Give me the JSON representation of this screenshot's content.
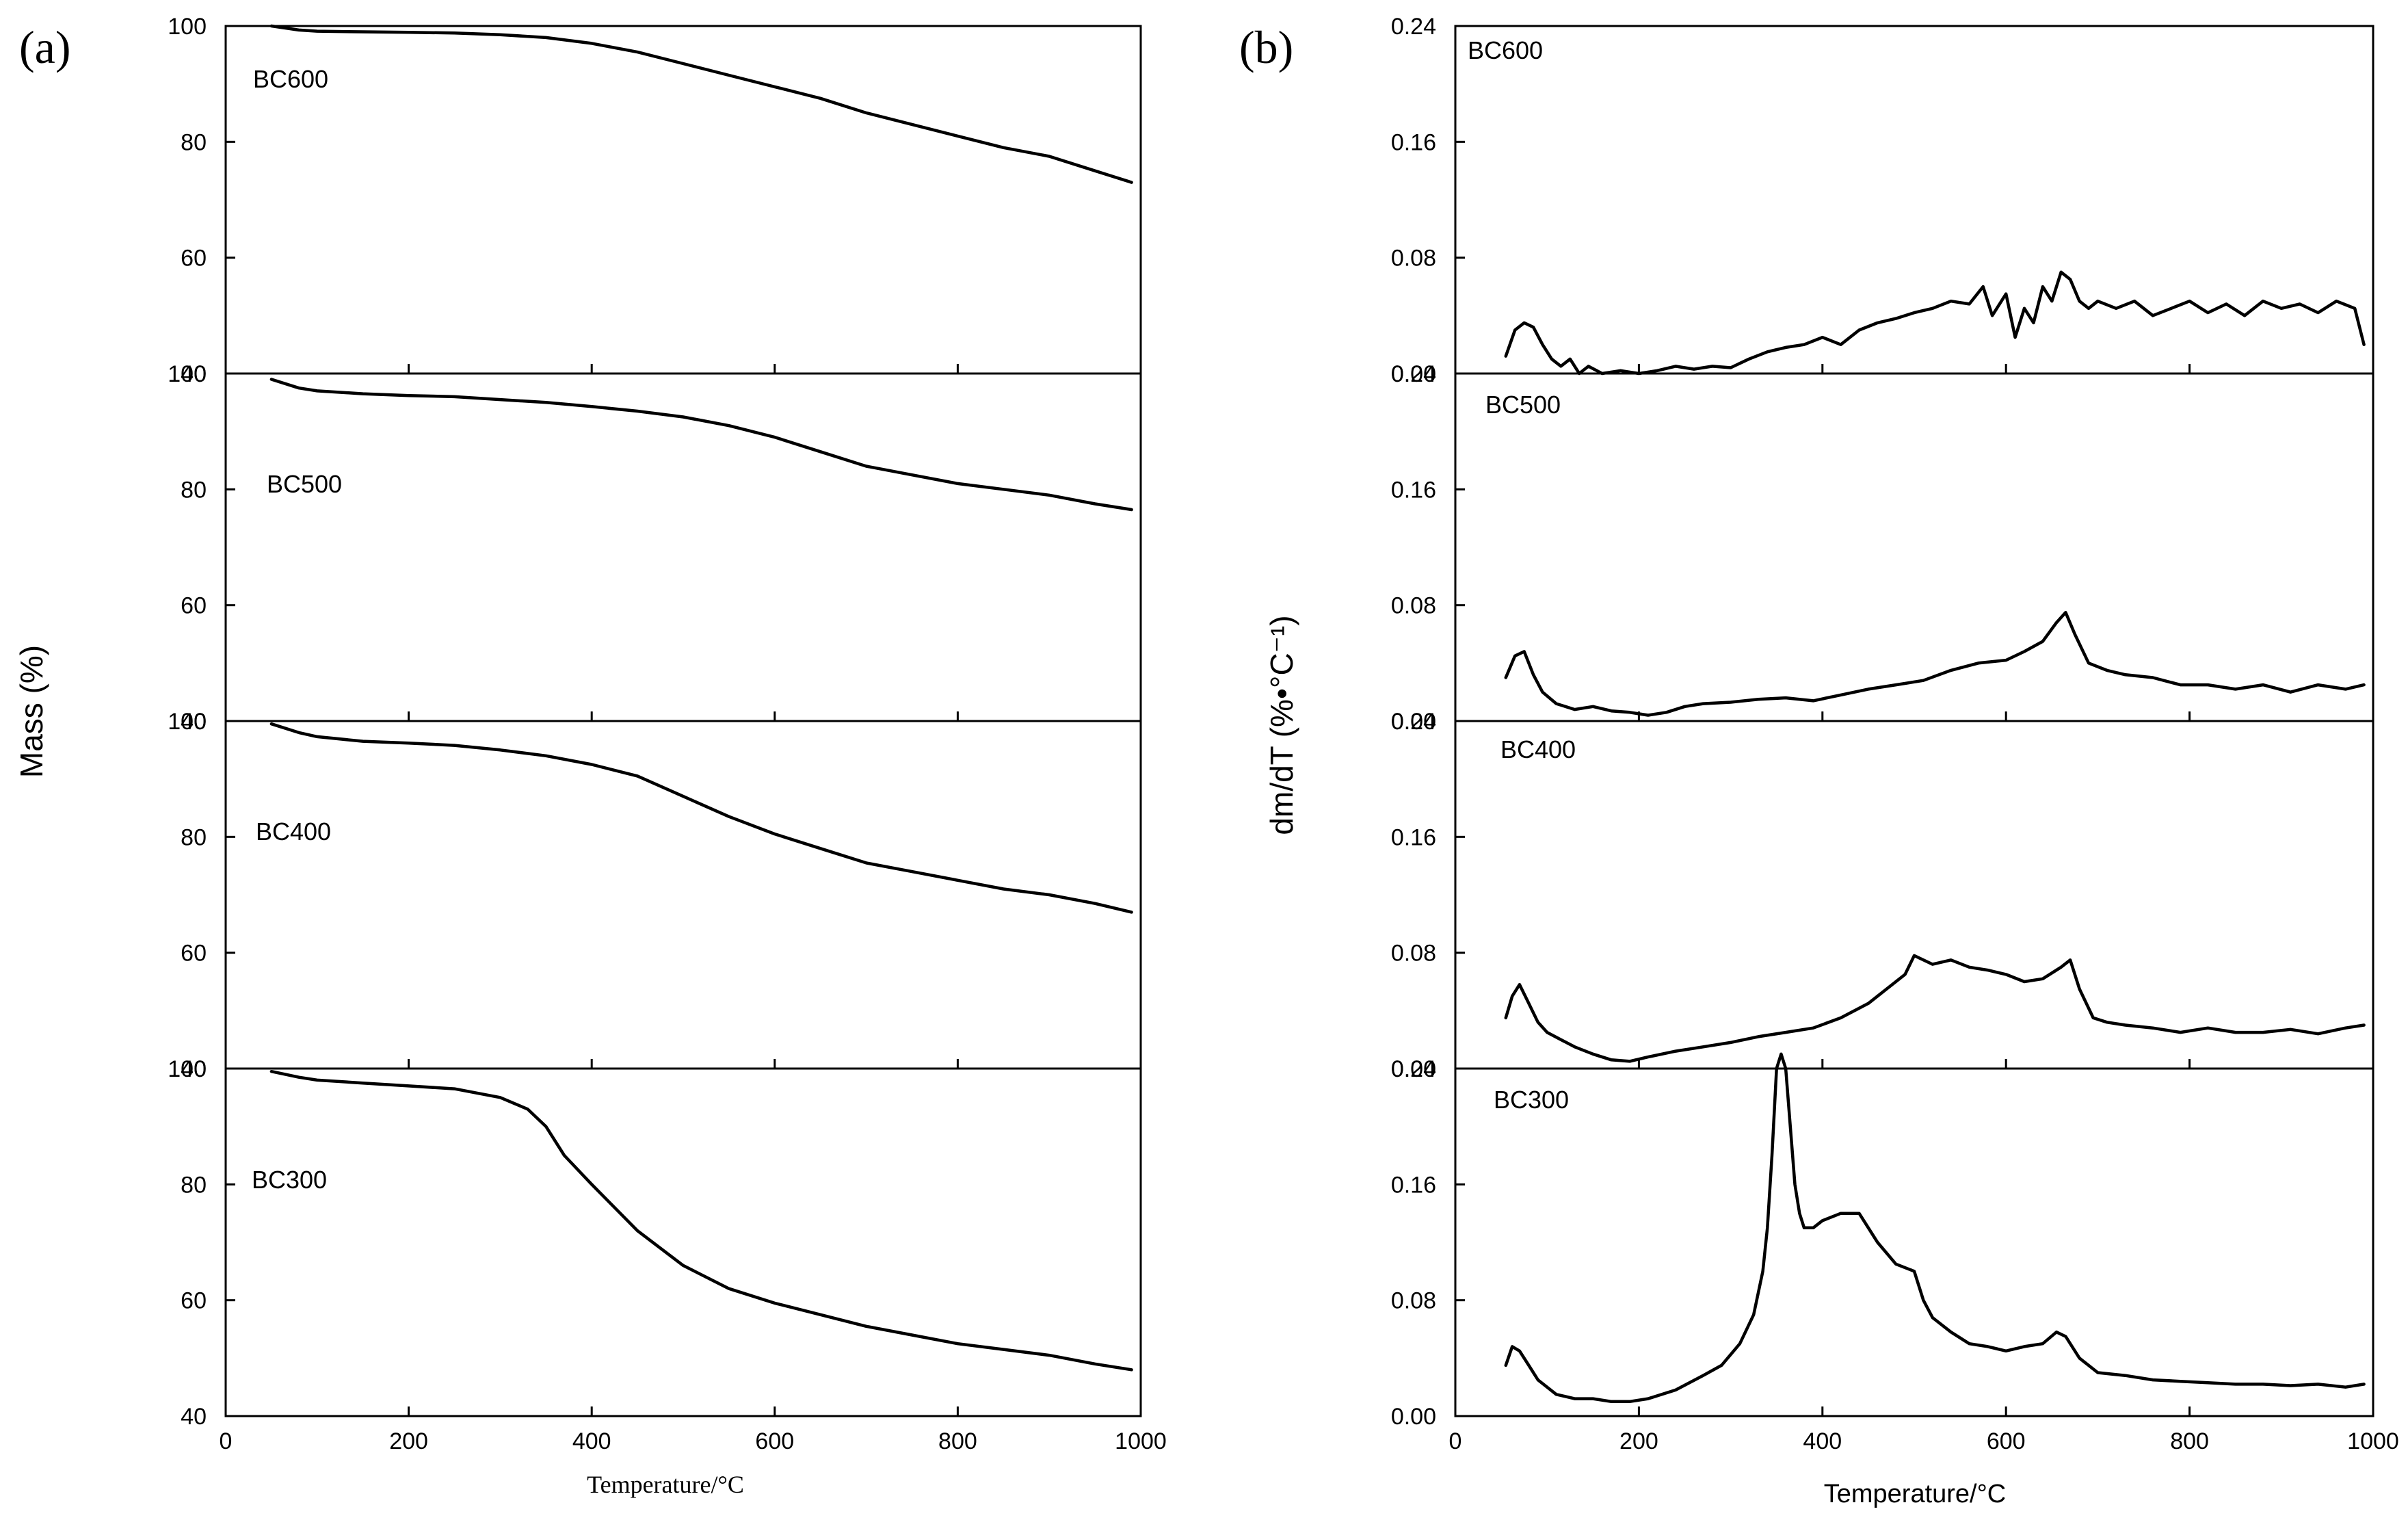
{
  "figure": {
    "panel_a_label": "(a)",
    "panel_b_label": "(b)"
  },
  "chart_data": [
    {
      "panel": "a",
      "type": "line",
      "title": "",
      "xlabel": "Temperature/°C",
      "ylabel": "Mass (%)",
      "xlim": [
        0,
        1000
      ],
      "ylim": [
        40,
        100
      ],
      "x_ticks": [
        "0",
        "200",
        "400",
        "600",
        "800",
        "1000"
      ],
      "y_ticks": [
        "40",
        "60",
        "80",
        "100"
      ],
      "series": [
        {
          "name": "BC600",
          "x": [
            50,
            80,
            100,
            150,
            200,
            250,
            300,
            350,
            400,
            450,
            500,
            550,
            600,
            650,
            700,
            750,
            800,
            850,
            900,
            950,
            990
          ],
          "values": [
            100,
            99.3,
            99.1,
            99,
            98.9,
            98.8,
            98.5,
            98,
            97,
            95.5,
            93.5,
            91.5,
            89.5,
            87.5,
            85,
            83,
            81,
            79,
            77.5,
            75,
            73
          ]
        },
        {
          "name": "BC500",
          "x": [
            50,
            80,
            100,
            150,
            200,
            250,
            300,
            350,
            400,
            450,
            500,
            550,
            600,
            650,
            700,
            750,
            800,
            850,
            900,
            950,
            990
          ],
          "values": [
            99,
            97.5,
            97,
            96.5,
            96.2,
            96,
            95.5,
            95,
            94.3,
            93.5,
            92.5,
            91,
            89,
            86.5,
            84,
            82.5,
            81,
            80,
            79,
            77.5,
            76.5
          ]
        },
        {
          "name": "BC400",
          "x": [
            50,
            80,
            100,
            150,
            200,
            250,
            300,
            350,
            400,
            450,
            500,
            550,
            600,
            650,
            700,
            750,
            800,
            850,
            900,
            950,
            990
          ],
          "values": [
            99.5,
            98,
            97.3,
            96.5,
            96.2,
            95.8,
            95,
            94,
            92.5,
            90.5,
            87,
            83.5,
            80.5,
            78,
            75.5,
            74,
            72.5,
            71,
            70,
            68.5,
            67
          ]
        },
        {
          "name": "BC300",
          "x": [
            50,
            80,
            100,
            150,
            200,
            250,
            300,
            330,
            350,
            370,
            400,
            450,
            500,
            550,
            600,
            650,
            700,
            750,
            800,
            850,
            900,
            950,
            990
          ],
          "values": [
            99.5,
            98.5,
            98,
            97.5,
            97,
            96.5,
            95,
            93,
            90,
            85,
            80,
            72,
            66,
            62,
            59.5,
            57.5,
            55.5,
            54,
            52.5,
            51.5,
            50.5,
            49,
            48
          ]
        }
      ]
    },
    {
      "panel": "b",
      "type": "line",
      "title": "",
      "xlabel": "Temperature/°C",
      "ylabel": "dm/dT (%•°C⁻¹)",
      "xlim": [
        0,
        1000
      ],
      "ylim": [
        0,
        0.24
      ],
      "x_ticks": [
        "0",
        "200",
        "400",
        "600",
        "800",
        "1000"
      ],
      "y_ticks": [
        "0.00",
        "0.08",
        "0.16",
        "0.24"
      ],
      "series": [
        {
          "name": "BC600",
          "x": [
            55,
            65,
            75,
            85,
            95,
            105,
            115,
            125,
            135,
            145,
            160,
            180,
            200,
            220,
            240,
            260,
            280,
            300,
            320,
            340,
            360,
            380,
            400,
            420,
            440,
            460,
            480,
            500,
            520,
            540,
            560,
            575,
            585,
            600,
            610,
            620,
            630,
            640,
            650,
            660,
            670,
            680,
            690,
            700,
            720,
            740,
            760,
            780,
            800,
            820,
            840,
            860,
            880,
            900,
            920,
            940,
            960,
            980,
            990
          ],
          "values": [
            0.012,
            0.03,
            0.035,
            0.032,
            0.02,
            0.01,
            0.005,
            0.01,
            0,
            0.005,
            0,
            0.002,
            0,
            0.002,
            0.005,
            0.003,
            0.005,
            0.004,
            0.01,
            0.015,
            0.018,
            0.02,
            0.025,
            0.02,
            0.03,
            0.035,
            0.038,
            0.042,
            0.045,
            0.05,
            0.048,
            0.06,
            0.04,
            0.055,
            0.025,
            0.045,
            0.035,
            0.06,
            0.05,
            0.07,
            0.065,
            0.05,
            0.045,
            0.05,
            0.045,
            0.05,
            0.04,
            0.045,
            0.05,
            0.042,
            0.048,
            0.04,
            0.05,
            0.045,
            0.048,
            0.042,
            0.05,
            0.045,
            0.02
          ]
        },
        {
          "name": "BC500",
          "x": [
            55,
            65,
            75,
            85,
            95,
            110,
            130,
            150,
            170,
            190,
            210,
            230,
            250,
            270,
            300,
            330,
            360,
            390,
            420,
            450,
            480,
            510,
            540,
            570,
            600,
            620,
            640,
            655,
            665,
            675,
            690,
            710,
            730,
            760,
            790,
            820,
            850,
            880,
            910,
            940,
            970,
            990
          ],
          "values": [
            0.03,
            0.045,
            0.048,
            0.032,
            0.02,
            0.012,
            0.008,
            0.01,
            0.007,
            0.006,
            0.004,
            0.006,
            0.01,
            0.012,
            0.013,
            0.015,
            0.016,
            0.014,
            0.018,
            0.022,
            0.025,
            0.028,
            0.035,
            0.04,
            0.042,
            0.048,
            0.055,
            0.068,
            0.075,
            0.06,
            0.04,
            0.035,
            0.032,
            0.03,
            0.025,
            0.025,
            0.022,
            0.025,
            0.02,
            0.025,
            0.022,
            0.025
          ]
        },
        {
          "name": "BC400",
          "x": [
            55,
            62,
            70,
            80,
            90,
            100,
            115,
            130,
            150,
            170,
            190,
            210,
            240,
            270,
            300,
            330,
            360,
            390,
            420,
            450,
            470,
            490,
            500,
            520,
            540,
            560,
            580,
            600,
            620,
            640,
            660,
            670,
            680,
            695,
            710,
            730,
            760,
            790,
            820,
            850,
            880,
            910,
            940,
            970,
            990
          ],
          "values": [
            0.035,
            0.05,
            0.058,
            0.045,
            0.032,
            0.025,
            0.02,
            0.015,
            0.01,
            0.006,
            0.005,
            0.008,
            0.012,
            0.015,
            0.018,
            0.022,
            0.025,
            0.028,
            0.035,
            0.045,
            0.055,
            0.065,
            0.078,
            0.072,
            0.075,
            0.07,
            0.068,
            0.065,
            0.06,
            0.062,
            0.07,
            0.075,
            0.055,
            0.035,
            0.032,
            0.03,
            0.028,
            0.025,
            0.028,
            0.025,
            0.025,
            0.027,
            0.024,
            0.028,
            0.03
          ]
        },
        {
          "name": "BC300",
          "x": [
            55,
            62,
            70,
            80,
            90,
            110,
            130,
            150,
            170,
            190,
            210,
            240,
            270,
            290,
            310,
            325,
            335,
            340,
            345,
            350,
            355,
            360,
            365,
            370,
            375,
            380,
            390,
            400,
            420,
            440,
            460,
            480,
            500,
            510,
            520,
            540,
            560,
            580,
            600,
            620,
            640,
            655,
            665,
            680,
            700,
            730,
            760,
            790,
            820,
            850,
            880,
            910,
            940,
            970,
            990
          ],
          "values": [
            0.035,
            0.048,
            0.045,
            0.035,
            0.025,
            0.015,
            0.012,
            0.012,
            0.01,
            0.01,
            0.012,
            0.018,
            0.028,
            0.035,
            0.05,
            0.07,
            0.1,
            0.13,
            0.18,
            0.24,
            0.25,
            0.24,
            0.2,
            0.16,
            0.14,
            0.13,
            0.13,
            0.135,
            0.14,
            0.14,
            0.12,
            0.105,
            0.1,
            0.08,
            0.068,
            0.058,
            0.05,
            0.048,
            0.045,
            0.048,
            0.05,
            0.058,
            0.055,
            0.04,
            0.03,
            0.028,
            0.025,
            0.024,
            0.023,
            0.022,
            0.022,
            0.021,
            0.022,
            0.02,
            0.022
          ]
        }
      ]
    }
  ]
}
